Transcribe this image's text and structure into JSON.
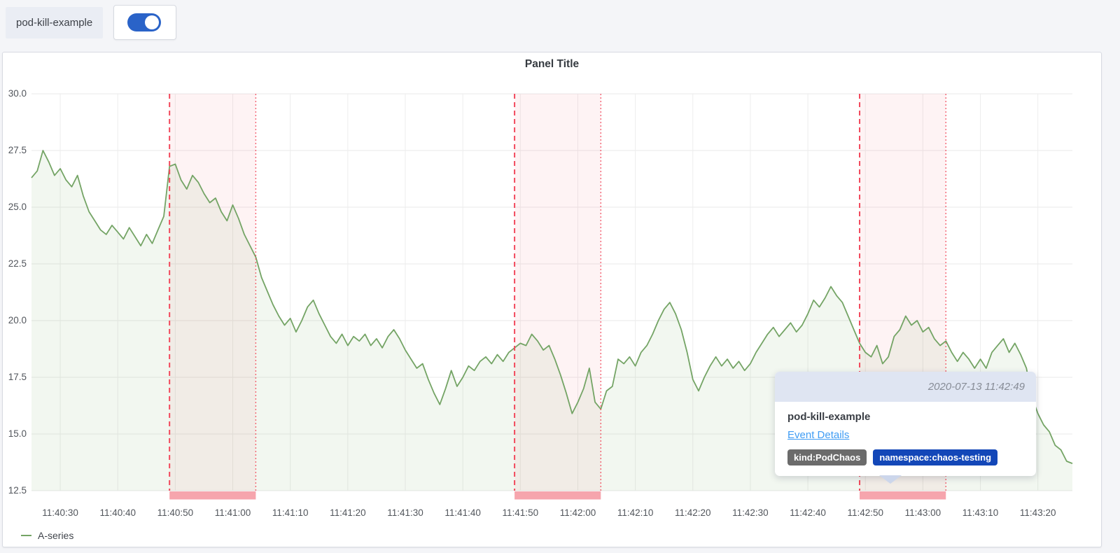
{
  "toolbar": {
    "experiment_label": "pod-kill-example",
    "toggle_on": true,
    "toggle_color": "#2a63c8"
  },
  "panel": {
    "title": "Panel Title"
  },
  "legend": [
    {
      "label": "A-series",
      "color": "#74a465"
    }
  ],
  "tooltip": {
    "timestamp": "2020-07-13 11:42:49",
    "title": "pod-kill-example",
    "link": "Event Details",
    "tags": [
      {
        "label": "kind:PodChaos",
        "color": "#6b6b6b"
      },
      {
        "label": "namespace:chaos-testing",
        "color": "#1347b8"
      }
    ]
  },
  "chart_data": {
    "type": "line",
    "title": "Panel Title",
    "xlabel": "",
    "ylabel": "",
    "grid": true,
    "legend_position": "bottom-left",
    "y_axis": {
      "range": [
        12.5,
        30.0
      ],
      "ticks": [
        30.0,
        27.5,
        25.0,
        22.5,
        20.0,
        17.5,
        15.0,
        12.5
      ],
      "tick_labels": [
        "30.0",
        "27.5",
        "25.0",
        "22.5",
        "20.0",
        "17.5",
        "15.0",
        "12.5"
      ]
    },
    "x_axis": {
      "range_seconds_after_11_40": [
        25,
        206
      ],
      "tick_seconds": [
        30,
        40,
        50,
        60,
        70,
        80,
        90,
        100,
        110,
        120,
        130,
        140,
        150,
        160,
        170,
        180,
        190,
        200
      ],
      "tick_labels": [
        "11:40:30",
        "11:40:40",
        "11:40:50",
        "11:41:00",
        "11:41:10",
        "11:41:20",
        "11:41:30",
        "11:41:40",
        "11:41:50",
        "11:42:00",
        "11:42:10",
        "11:42:20",
        "11:42:30",
        "11:42:40",
        "11:42:50",
        "11:43:00",
        "11:43:10",
        "11:43:20"
      ]
    },
    "series": [
      {
        "name": "A-series",
        "color": "#74a465",
        "fill": "rgba(126,178,109,0.10)",
        "t0_seconds_after_11_40": 25,
        "step_seconds": 1,
        "values": [
          26.3,
          26.6,
          27.5,
          27.0,
          26.4,
          26.7,
          26.2,
          25.9,
          26.4,
          25.5,
          24.8,
          24.4,
          24.0,
          23.8,
          24.2,
          23.9,
          23.6,
          24.1,
          23.7,
          23.3,
          23.8,
          23.4,
          24.0,
          24.6,
          26.8,
          26.9,
          26.2,
          25.8,
          26.4,
          26.1,
          25.6,
          25.2,
          25.4,
          24.8,
          24.4,
          25.1,
          24.5,
          23.8,
          23.3,
          22.8,
          21.9,
          21.3,
          20.7,
          20.2,
          19.8,
          20.1,
          19.5,
          20.0,
          20.6,
          20.9,
          20.3,
          19.8,
          19.3,
          19.0,
          19.4,
          18.9,
          19.3,
          19.1,
          19.4,
          18.9,
          19.2,
          18.8,
          19.3,
          19.6,
          19.2,
          18.7,
          18.3,
          17.9,
          18.1,
          17.4,
          16.8,
          16.3,
          17.0,
          17.8,
          17.1,
          17.5,
          18.0,
          17.8,
          18.2,
          18.4,
          18.1,
          18.5,
          18.2,
          18.6,
          18.8,
          19.0,
          18.9,
          19.4,
          19.1,
          18.7,
          18.9,
          18.3,
          17.6,
          16.8,
          15.9,
          16.4,
          17.0,
          17.9,
          16.4,
          16.1,
          16.9,
          17.1,
          18.3,
          18.1,
          18.4,
          18.0,
          18.6,
          18.9,
          19.4,
          20.0,
          20.5,
          20.8,
          20.3,
          19.6,
          18.6,
          17.4,
          16.9,
          17.5,
          18.0,
          18.4,
          18.0,
          18.3,
          17.9,
          18.2,
          17.8,
          18.1,
          18.6,
          19.0,
          19.4,
          19.7,
          19.3,
          19.6,
          19.9,
          19.5,
          19.8,
          20.3,
          20.9,
          20.6,
          21.0,
          21.5,
          21.1,
          20.8,
          20.2,
          19.6,
          19.0,
          18.6,
          18.4,
          18.9,
          18.1,
          18.4,
          19.3,
          19.6,
          20.2,
          19.8,
          20.0,
          19.5,
          19.7,
          19.2,
          18.9,
          19.1,
          18.6,
          18.2,
          18.6,
          18.3,
          17.9,
          18.3,
          17.9,
          18.6,
          18.9,
          19.2,
          18.6,
          19.0,
          18.5,
          17.9,
          16.6,
          15.9,
          15.4,
          15.1,
          14.5,
          14.3,
          13.8,
          13.7
        ]
      }
    ],
    "annotations": {
      "name": "pod-kill-example",
      "kind": "PodChaos",
      "namespace": "chaos-testing",
      "fill": "rgba(242,73,92,0.065)",
      "line_color": "#f2495c",
      "strip_color": "#f6a5ad",
      "regions": [
        {
          "start": "11:40:49",
          "end": "11:41:04",
          "start_s": 49,
          "end_s": 64
        },
        {
          "start": "11:41:49",
          "end": "11:42:04",
          "start_s": 109,
          "end_s": 124
        },
        {
          "start": "11:42:49",
          "end": "11:43:04",
          "start_s": 169,
          "end_s": 184
        }
      ]
    }
  }
}
